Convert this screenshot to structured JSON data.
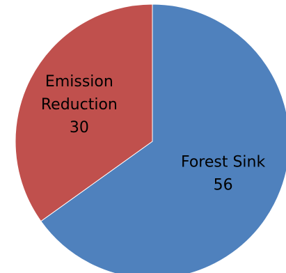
{
  "chart_data": {
    "type": "pie",
    "title": "",
    "slices": [
      {
        "label_lines": [
          "Forest Sink"
        ],
        "name": "Forest Sink",
        "value": 56,
        "value_label": "56",
        "color": "#4f81bd"
      },
      {
        "label_lines": [
          "Emission",
          "Reduction"
        ],
        "name": "Emission Reduction",
        "value": 30,
        "value_label": "30",
        "color": "#c0504d"
      }
    ],
    "start_angle_deg": 0,
    "direction": "clockwise",
    "legend": "none"
  }
}
